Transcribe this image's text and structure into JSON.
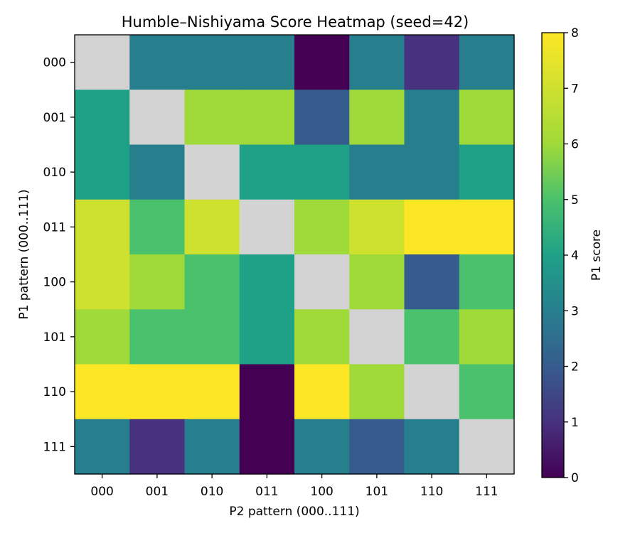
{
  "chart_data": {
    "type": "heatmap",
    "title": "Humble–Nishiyama Score Heatmap (seed=42)",
    "xlabel": "P2 pattern (000..111)",
    "ylabel": "P1 pattern (000..111)",
    "x_categories": [
      "000",
      "001",
      "010",
      "011",
      "100",
      "101",
      "110",
      "111"
    ],
    "y_categories": [
      "000",
      "001",
      "010",
      "011",
      "100",
      "101",
      "110",
      "111"
    ],
    "values": [
      [
        null,
        3,
        3,
        3,
        0,
        3,
        1,
        3
      ],
      [
        4,
        null,
        6,
        6,
        2,
        6,
        3,
        6
      ],
      [
        4,
        3,
        null,
        4,
        4,
        3,
        3,
        4
      ],
      [
        7,
        5,
        7,
        null,
        6,
        7,
        8,
        8
      ],
      [
        7,
        6,
        5,
        4,
        null,
        6,
        2,
        5
      ],
      [
        6,
        5,
        5,
        4,
        6,
        null,
        5,
        6
      ],
      [
        8,
        8,
        8,
        0,
        8,
        6,
        null,
        5
      ],
      [
        3,
        1,
        3,
        0,
        3,
        2,
        3,
        null
      ]
    ],
    "vmin": 0,
    "vmax": 8,
    "colormap": "viridis",
    "diagonal_color": "#d3d3d3",
    "colorbar": {
      "label": "P1 score",
      "ticks": [
        "0",
        "1",
        "2",
        "3",
        "4",
        "5",
        "6",
        "7",
        "8"
      ]
    }
  }
}
